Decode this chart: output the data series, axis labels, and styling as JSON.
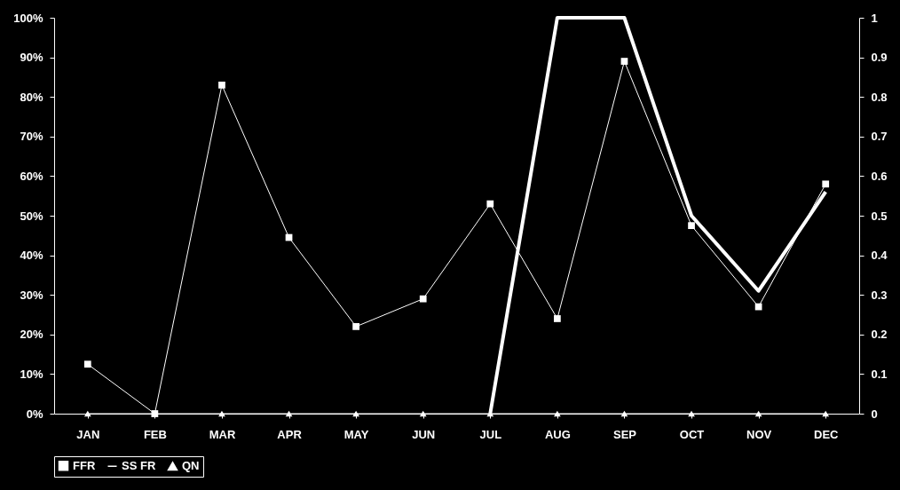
{
  "chart_data": {
    "type": "line",
    "categories": [
      "JAN",
      "FEB",
      "MAR",
      "APR",
      "MAY",
      "JUN",
      "JUL",
      "AUG",
      "SEP",
      "OCT",
      "NOV",
      "DEC"
    ],
    "series": [
      {
        "name": "FFR",
        "color": "#ffffff",
        "marker": "square",
        "values": [
          12.5,
          0,
          83,
          44.5,
          22,
          29,
          53,
          24,
          89,
          47.5,
          27,
          58
        ]
      },
      {
        "name": "SS FR",
        "color": "#ffffff",
        "marker": "none",
        "axis": "y2",
        "values": [
          null,
          null,
          null,
          null,
          null,
          null,
          0,
          1,
          1,
          0.5,
          0.31,
          0.56
        ]
      },
      {
        "name": "QN",
        "color": "#ffffff",
        "marker": "triangle",
        "values": [
          0,
          0,
          0,
          0,
          0,
          0,
          0,
          0,
          0,
          0,
          0,
          0
        ]
      }
    ],
    "ylim": [
      0,
      100
    ],
    "yticks": [
      {
        "value": 0,
        "label": "0%"
      },
      {
        "value": 10,
        "label": "10%"
      },
      {
        "value": 20,
        "label": "20%"
      },
      {
        "value": 30,
        "label": "30%"
      },
      {
        "value": 40,
        "label": "40%"
      },
      {
        "value": 50,
        "label": "50%"
      },
      {
        "value": 60,
        "label": "60%"
      },
      {
        "value": 70,
        "label": "70%"
      },
      {
        "value": 80,
        "label": "80%"
      },
      {
        "value": 90,
        "label": "90%"
      },
      {
        "value": 100,
        "label": "100%"
      }
    ],
    "y2lim": [
      0,
      1
    ],
    "y2ticks": [
      0,
      0.1,
      0.2,
      0.3,
      0.4,
      0.5,
      0.6,
      0.7,
      0.8,
      0.9,
      1
    ],
    "grid": false,
    "legend": "bottom"
  }
}
